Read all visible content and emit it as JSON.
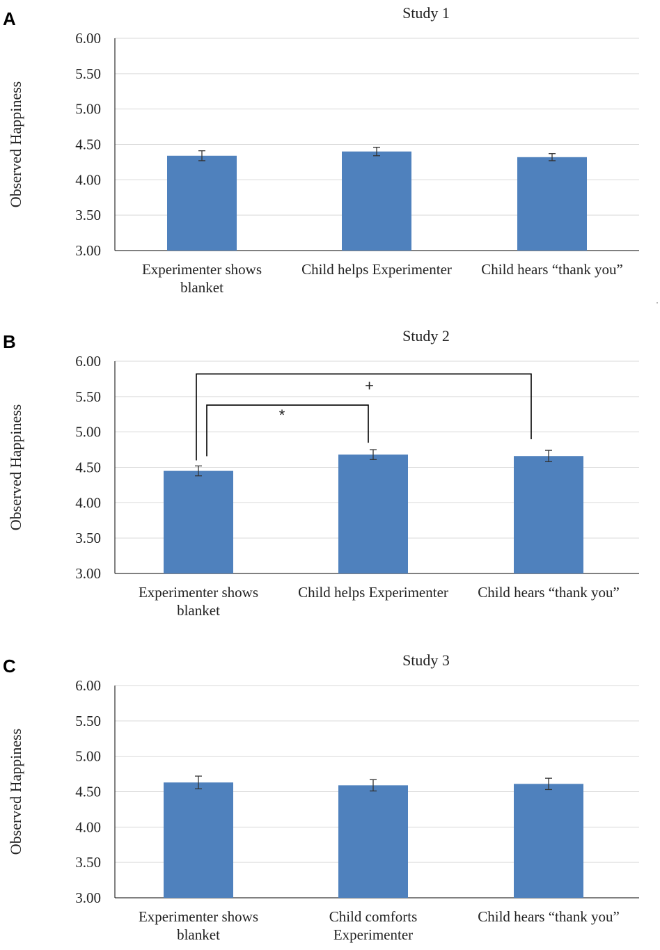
{
  "chart_data": [
    {
      "type": "bar",
      "panel": "A",
      "title": "Study 1",
      "ylabel": "Observed Happiness",
      "ylim": [
        3.0,
        6.0
      ],
      "yticks": [
        "3.00",
        "3.50",
        "4.00",
        "4.50",
        "5.00",
        "5.50",
        "6.00"
      ],
      "color": "#4f81bd",
      "categories": [
        [
          "Experimenter shows",
          "blanket"
        ],
        [
          "Child helps Experimenter"
        ],
        [
          "Child hears “thank you”"
        ]
      ],
      "values": [
        4.34,
        4.4,
        4.32
      ],
      "errors": [
        0.07,
        0.06,
        0.05
      ],
      "brackets": []
    },
    {
      "type": "bar",
      "panel": "B",
      "title": "Study 2",
      "ylabel": "Observed Happiness",
      "ylim": [
        3.0,
        6.0
      ],
      "yticks": [
        "3.00",
        "3.50",
        "4.00",
        "4.50",
        "5.00",
        "5.50",
        "6.00"
      ],
      "color": "#4f81bd",
      "categories": [
        [
          "Experimenter shows",
          "blanket"
        ],
        [
          "Child helps Experimenter"
        ],
        [
          "Child hears “thank you”"
        ]
      ],
      "values": [
        4.45,
        4.68,
        4.66
      ],
      "errors": [
        0.07,
        0.07,
        0.08
      ],
      "brackets": [
        {
          "from": 0,
          "to": 2,
          "level": 5.82,
          "label": "+"
        },
        {
          "from": 0,
          "to": 1,
          "level": 5.38,
          "label": "*"
        }
      ]
    },
    {
      "type": "bar",
      "panel": "C",
      "title": "Study 3",
      "ylabel": "Observed Happiness",
      "ylim": [
        3.0,
        6.0
      ],
      "yticks": [
        "3.00",
        "3.50",
        "4.00",
        "4.50",
        "5.00",
        "5.50",
        "6.00"
      ],
      "color": "#4f81bd",
      "categories": [
        [
          "Experimenter shows",
          "blanket"
        ],
        [
          "Child comforts",
          "Experimenter"
        ],
        [
          "Child hears “thank you”"
        ]
      ],
      "values": [
        4.63,
        4.59,
        4.61
      ],
      "errors": [
        0.09,
        0.08,
        0.08
      ],
      "brackets": []
    }
  ]
}
